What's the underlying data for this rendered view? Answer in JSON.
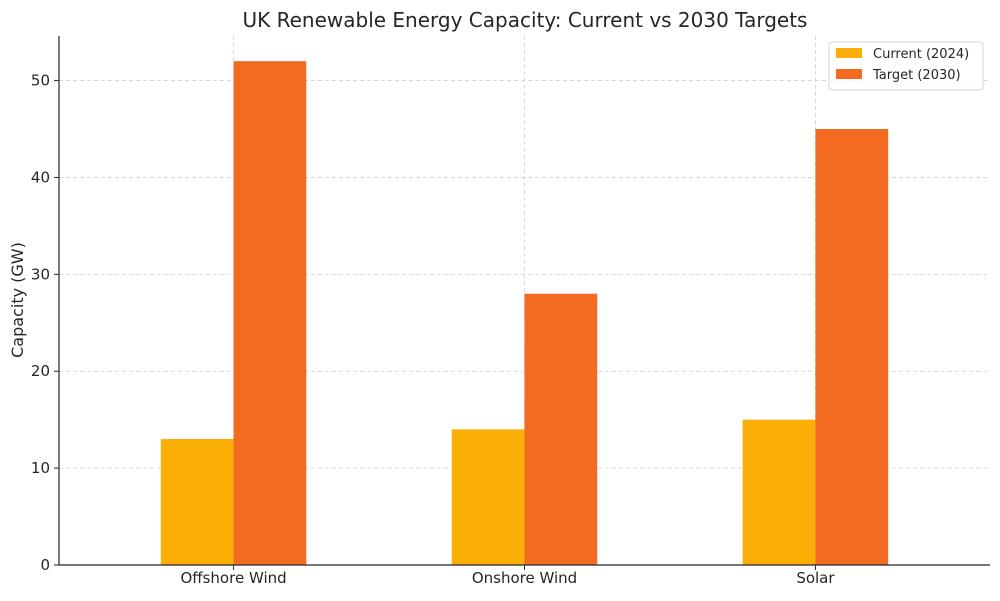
{
  "chart_data": {
    "type": "bar",
    "title": "UK Renewable Energy Capacity: Current vs 2030 Targets",
    "xlabel": "",
    "ylabel": "Capacity (GW)",
    "categories": [
      "Offshore Wind",
      "Onshore Wind",
      "Solar"
    ],
    "series": [
      {
        "name": "Current (2024)",
        "values": [
          13,
          14,
          15
        ],
        "color": "#FBAE05"
      },
      {
        "name": "Target (2030)",
        "values": [
          52,
          28,
          45
        ],
        "color": "#F26B21"
      }
    ],
    "ylim": [
      0,
      54.6
    ],
    "yticks": [
      0,
      10,
      20,
      30,
      40,
      50
    ],
    "grid": true,
    "legend_position": "top-right"
  }
}
